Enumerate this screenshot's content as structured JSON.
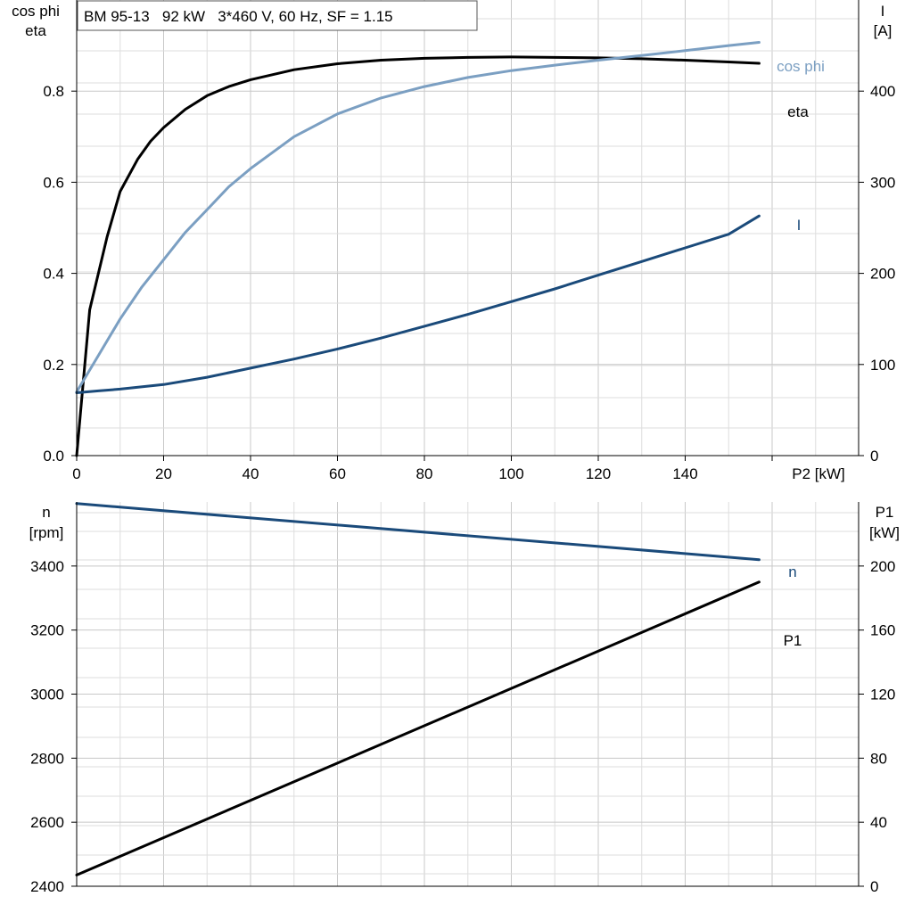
{
  "chart_data": [
    {
      "type": "line",
      "title": "BM 95-13   92 kW   3*460 V, 60 Hz, SF = 1.15",
      "xlabel": "P2 [kW]",
      "xlim": [
        0,
        180
      ],
      "x_ticks": [
        0,
        20,
        40,
        60,
        80,
        100,
        120,
        140
      ],
      "grid": true,
      "left_axis": {
        "label": [
          "cos phi",
          "eta"
        ],
        "ylim": [
          0,
          1.0
        ],
        "ticks": [
          0.0,
          0.2,
          0.4,
          0.6,
          0.8
        ],
        "tick_labels": [
          "0.0",
          "0.2",
          "0.4",
          "0.6",
          "0.8"
        ]
      },
      "right_axis": {
        "label": [
          "I",
          "[A]"
        ],
        "ylim": [
          0,
          500
        ],
        "ticks": [
          0,
          100,
          200,
          300,
          400
        ],
        "tick_labels": [
          "0",
          "100",
          "200",
          "300",
          "400"
        ]
      },
      "series": [
        {
          "name": "eta",
          "axis": "left",
          "color": "#000000",
          "x": [
            0,
            3,
            7,
            10,
            14,
            17,
            20,
            25,
            30,
            35,
            40,
            50,
            60,
            70,
            80,
            90,
            100,
            110,
            120,
            130,
            140,
            150,
            157
          ],
          "y": [
            0,
            0.32,
            0.48,
            0.58,
            0.65,
            0.69,
            0.72,
            0.76,
            0.79,
            0.81,
            0.825,
            0.847,
            0.86,
            0.868,
            0.872,
            0.874,
            0.875,
            0.874,
            0.873,
            0.871,
            0.868,
            0.864,
            0.861
          ]
        },
        {
          "name": "cos phi",
          "axis": "left",
          "color": "#7b9fc2",
          "x": [
            0,
            5,
            10,
            15,
            20,
            25,
            30,
            35,
            40,
            50,
            60,
            70,
            80,
            90,
            100,
            110,
            120,
            130,
            140,
            150,
            157
          ],
          "y": [
            0.14,
            0.22,
            0.3,
            0.37,
            0.43,
            0.49,
            0.54,
            0.59,
            0.63,
            0.7,
            0.75,
            0.785,
            0.81,
            0.83,
            0.845,
            0.857,
            0.868,
            0.878,
            0.889,
            0.9,
            0.907
          ]
        },
        {
          "name": "I",
          "axis": "right",
          "color": "#1a4a7a",
          "x": [
            0,
            5,
            10,
            20,
            30,
            40,
            50,
            60,
            70,
            80,
            90,
            100,
            110,
            120,
            130,
            140,
            150,
            157
          ],
          "y": [
            69,
            71,
            73,
            78,
            86,
            96,
            106,
            117,
            129,
            142,
            155,
            169,
            183,
            198,
            213,
            228,
            243,
            263
          ]
        }
      ]
    },
    {
      "type": "line",
      "grid": true,
      "xlim": [
        0,
        180
      ],
      "left_axis": {
        "label": [
          "n",
          "[rpm]"
        ],
        "ylim": [
          2400,
          3600
        ],
        "ticks": [
          2400,
          2600,
          2800,
          3000,
          3200,
          3400
        ],
        "tick_labels": [
          "2400",
          "2600",
          "2800",
          "3000",
          "3200",
          "3400"
        ]
      },
      "right_axis": {
        "label": [
          "P1",
          "[kW]"
        ],
        "ylim": [
          0,
          240
        ],
        "ticks": [
          0,
          40,
          80,
          120,
          160,
          200
        ],
        "tick_labels": [
          "0",
          "40",
          "80",
          "120",
          "160",
          "200"
        ]
      },
      "series": [
        {
          "name": "n",
          "axis": "left",
          "color": "#1a4a7a",
          "x": [
            0,
            157
          ],
          "y": [
            3595,
            3420
          ]
        },
        {
          "name": "P1",
          "axis": "right",
          "color": "#000000",
          "x": [
            0,
            157
          ],
          "y": [
            7,
            190
          ]
        }
      ]
    }
  ]
}
